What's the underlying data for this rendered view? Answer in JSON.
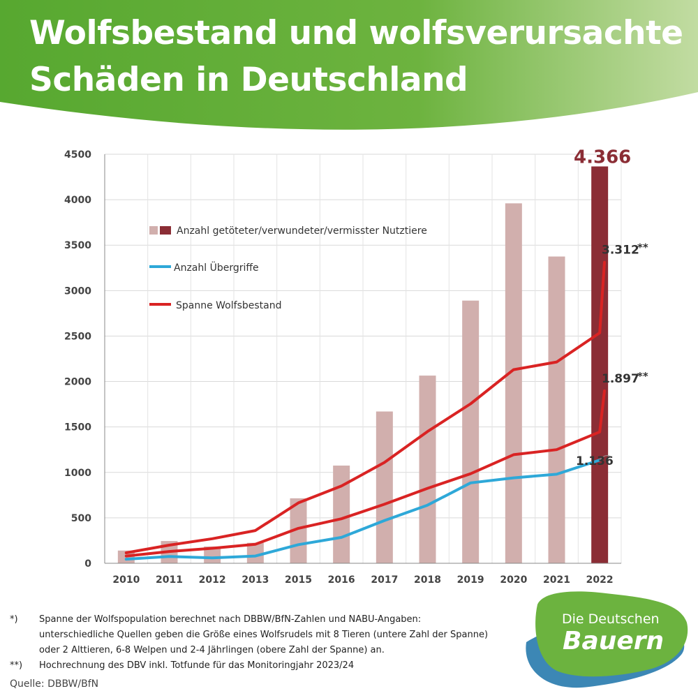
{
  "header": {
    "title_line1": "Wolfsbestand und wolfsverursachte",
    "title_line2": "Schäden in Deutschland",
    "gradient_colors": [
      "#57a830",
      "#6db33f",
      "#c2dca2"
    ]
  },
  "chart_data": {
    "type": "bar",
    "categories": [
      "2010",
      "2011",
      "2012",
      "2013",
      "2015",
      "2016",
      "2017",
      "2018",
      "2019",
      "2020",
      "2021",
      "2022"
    ],
    "ylim": [
      0,
      4500
    ],
    "yticks": [
      "0",
      "500",
      "1000",
      "1500",
      "2000",
      "2500",
      "3000",
      "3500",
      "4000",
      "4500"
    ],
    "grid": true,
    "legend_position": "top-left",
    "bar_series": {
      "name": "Anzahl getöteter/verwundeter/vermisster Nutztiere",
      "values": [
        140,
        245,
        185,
        225,
        715,
        1075,
        1670,
        2065,
        2890,
        3960,
        3375,
        4366
      ],
      "color": "#d1afad",
      "highlight_color": "#8b2d35",
      "highlight_index": 11,
      "highlight_label": "4.366"
    },
    "line_series": [
      {
        "name": "Anzahl Übergriffe",
        "color": "#2ea8d8",
        "values": [
          45,
          75,
          60,
          80,
          205,
          285,
          470,
          640,
          885,
          940,
          980,
          1136
        ],
        "end_label": "1.136"
      },
      {
        "name": "Spanne Wolfsbestand",
        "color": "#d92323",
        "values": [
          115,
          200,
          270,
          360,
          665,
          850,
          1110,
          1450,
          1755,
          2130,
          2215,
          2535,
          3312
        ],
        "end_label": "3.312",
        "end_marker": "**"
      },
      {
        "name": "Spanne Wolfsbestand",
        "color": "#d92323",
        "values": [
          80,
          130,
          165,
          210,
          385,
          490,
          650,
          825,
          985,
          1195,
          1250,
          1445,
          1897
        ],
        "end_label": "1.897",
        "end_marker": "**"
      }
    ]
  },
  "footnotes": [
    {
      "marker": "*)",
      "lines": [
        "Spanne der Wolfspopulation berechnet nach DBBW/BfN-Zahlen und NABU-Angaben:",
        "unterschiedliche Quellen geben die Größe eines Wolfsrudels mit 8 Tieren (untere Zahl der Spanne)",
        "oder 2 Alttieren, 6-8 Welpen und 2-4 Jährlingen (obere Zahl der Spanne) an."
      ]
    },
    {
      "marker": "**)",
      "lines": [
        "Hochrechnung des DBV inkl. Totfunde für das Monitoringjahr 2023/24"
      ]
    }
  ],
  "source": "Quelle: DBBW/BfN",
  "logo": {
    "line1": "Die Deutschen",
    "line2": "Bauern",
    "green": "#6cb33f",
    "blue": "#3c87b5"
  }
}
